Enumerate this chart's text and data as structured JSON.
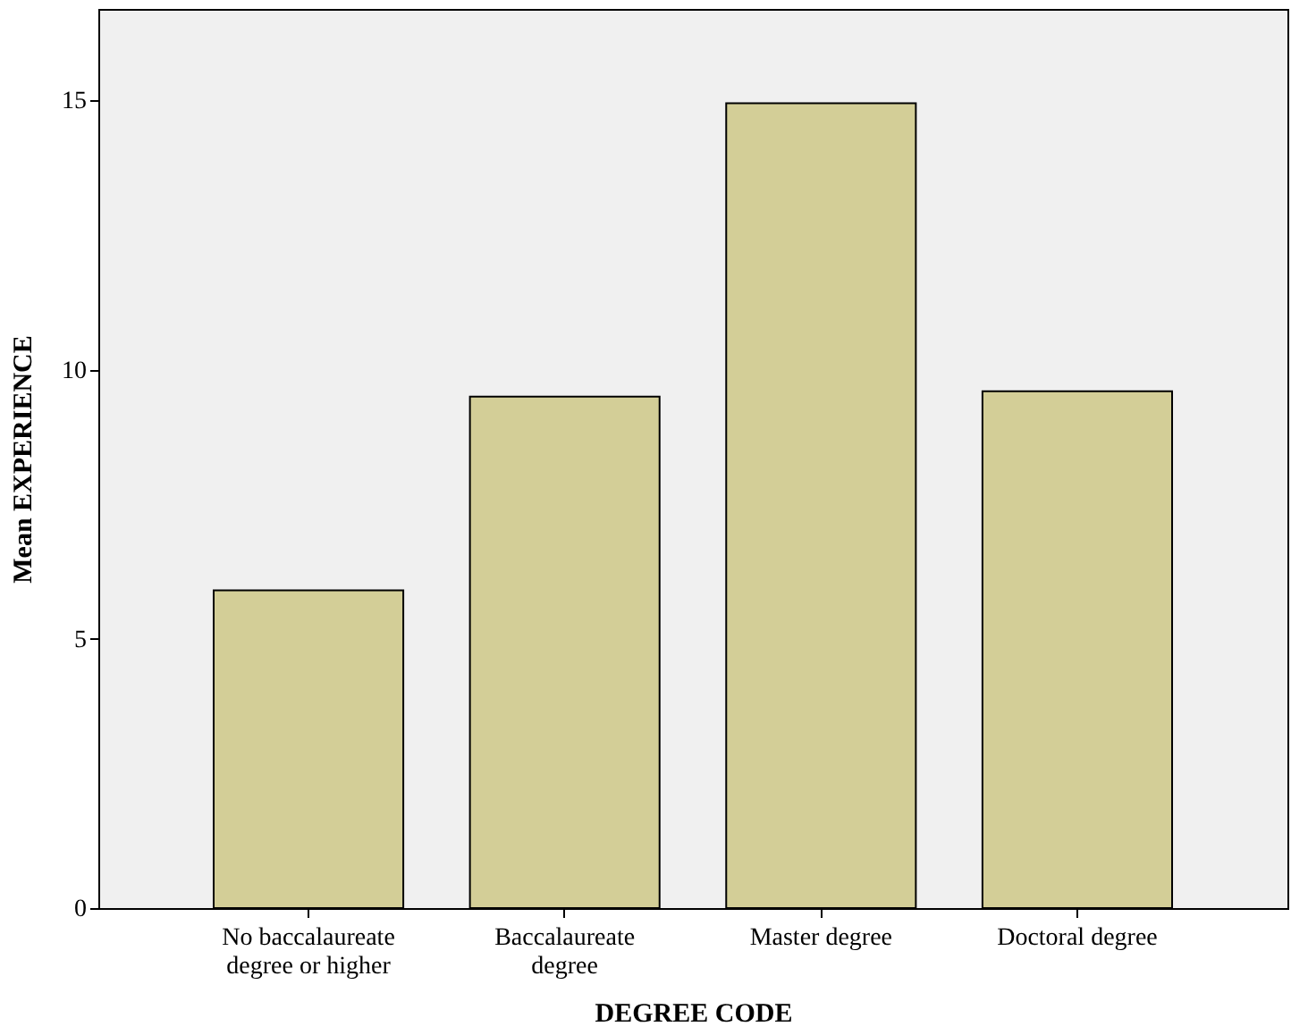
{
  "chart_data": {
    "type": "bar",
    "xlabel": "DEGREE CODE",
    "ylabel": "Mean EXPERIENCE",
    "categories": [
      "No baccalaureate degree or higher",
      "Baccalaureate degree",
      "Master degree",
      "Doctoral degree"
    ],
    "values": [
      5.9,
      9.5,
      14.95,
      9.6
    ],
    "color": "#d3ce97",
    "ylim": [
      0,
      16.7
    ],
    "yticks": [
      0,
      5,
      10,
      15
    ],
    "grid": false
  }
}
